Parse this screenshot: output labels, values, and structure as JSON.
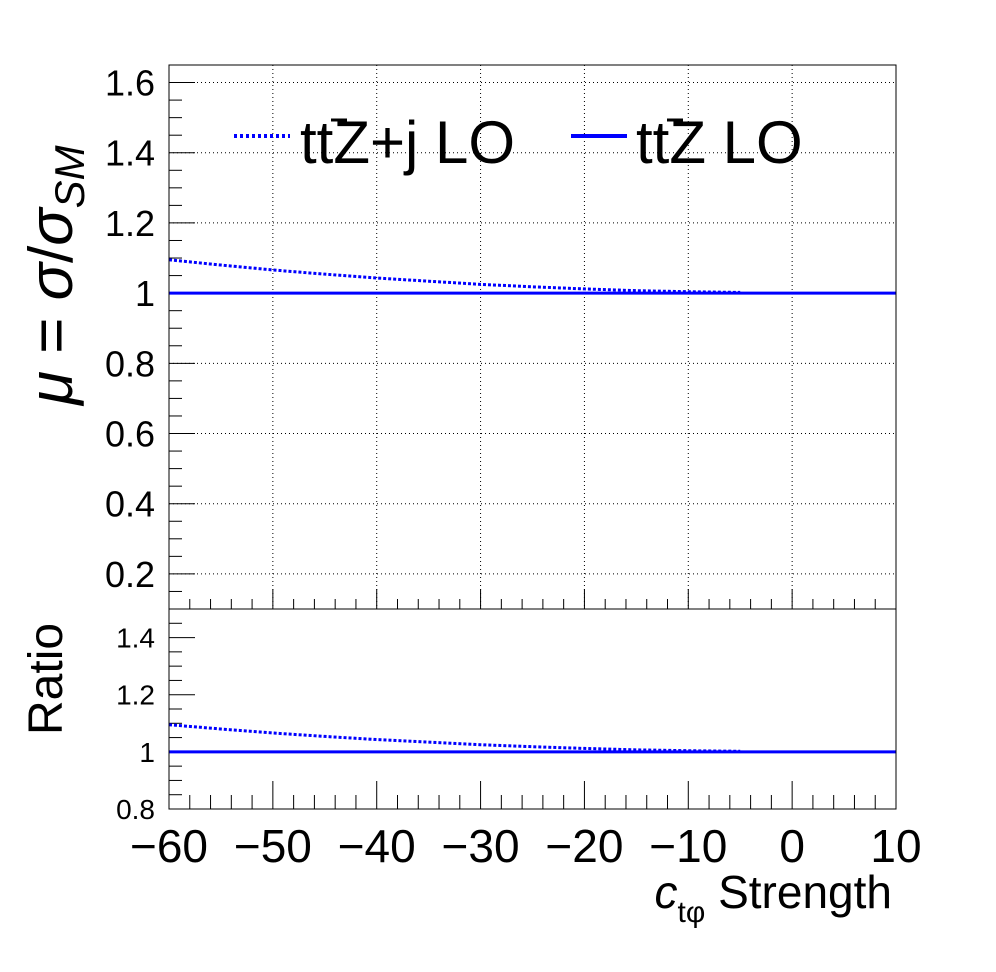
{
  "chart_data": [
    {
      "type": "line",
      "panel": "main",
      "ylabel": "μ = σ/σSM",
      "ylabel_parts": {
        "mu": "μ",
        "eq": " = ",
        "sigma1": "σ",
        "slash": "/",
        "sigma2": "σ",
        "sub": "SM"
      },
      "xlim": [
        -60,
        10
      ],
      "ylim": [
        0.1,
        1.65
      ],
      "yticks": [
        0.2,
        0.4,
        0.6,
        0.8,
        1,
        1.2,
        1.4,
        1.6
      ],
      "ytick_labels": [
        "0.2",
        "0.4",
        "0.6",
        "0.8",
        "1",
        "1.2",
        "1.4",
        "1.6"
      ],
      "grid": true,
      "legend_position": "top",
      "series": [
        {
          "name": "tt̄Z+j LO",
          "legend": {
            "t1": "t",
            "t2": "t",
            "rest": "Z+j LO"
          },
          "style": "dotted",
          "color": "#0000ff",
          "x": [
            -60,
            -55,
            -50,
            -45,
            -40,
            -35,
            -30,
            -25,
            -20,
            -15,
            -10,
            -5
          ],
          "y": [
            1.095,
            1.08,
            1.066,
            1.054,
            1.043,
            1.034,
            1.025,
            1.018,
            1.012,
            1.007,
            1.004,
            1.002
          ]
        },
        {
          "name": "tt̄Z LO",
          "legend": {
            "t1": "t",
            "t2": "t",
            "rest": "Z LO"
          },
          "style": "solid",
          "color": "#0000ff",
          "x": [
            -60,
            10
          ],
          "y": [
            1.0,
            1.0
          ]
        }
      ]
    },
    {
      "type": "line",
      "panel": "ratio",
      "ylabel": "Ratio",
      "xlabel": "ctφ Strength",
      "xlabel_parts": {
        "c": "c",
        "sub": "tφ",
        "rest": " Strength"
      },
      "xlim": [
        -60,
        10
      ],
      "ylim": [
        0.8,
        1.5
      ],
      "yticks": [
        0.8,
        1,
        1.2,
        1.4
      ],
      "ytick_labels": [
        "0.8",
        "1",
        "1.2",
        "1.4"
      ],
      "xticks": [
        -60,
        -50,
        -40,
        -30,
        -20,
        -10,
        0,
        10
      ],
      "xtick_labels": [
        "−60",
        "−50",
        "−40",
        "−30",
        "−20",
        "−10",
        "0",
        "10"
      ],
      "grid": false,
      "series": [
        {
          "style": "dotted",
          "color": "#0000ff",
          "x": [
            -60,
            -55,
            -50,
            -45,
            -40,
            -35,
            -30,
            -25,
            -20,
            -15,
            -10,
            -5
          ],
          "y": [
            1.095,
            1.08,
            1.066,
            1.054,
            1.043,
            1.034,
            1.025,
            1.018,
            1.012,
            1.007,
            1.004,
            1.002
          ]
        },
        {
          "style": "solid",
          "color": "#0000ff",
          "x": [
            -60,
            10
          ],
          "y": [
            1.0,
            1.0
          ]
        }
      ]
    }
  ]
}
